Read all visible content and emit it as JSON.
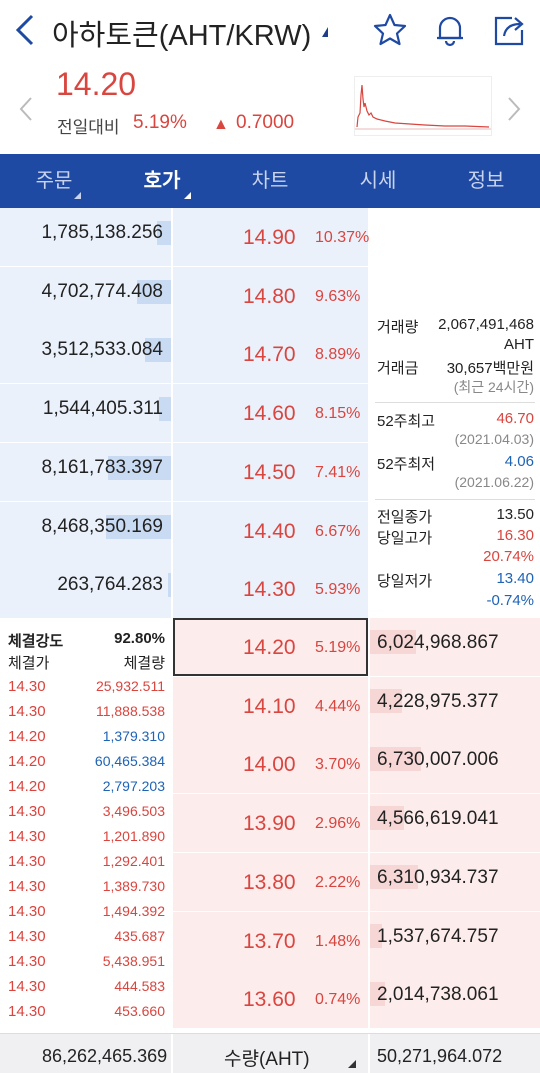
{
  "header": {
    "title": "아하토큰(AHT/KRW)",
    "icons": [
      "back-icon",
      "star-icon",
      "bell-icon",
      "share-icon"
    ]
  },
  "summary": {
    "price": "14.20",
    "prev_label": "전일대비",
    "change_pct": "5.19%",
    "change_arrow": "▲",
    "change_abs": "0.7000"
  },
  "tabs": [
    {
      "label": "주문",
      "active": false,
      "caret": true
    },
    {
      "label": "호가",
      "active": true,
      "caret": true
    },
    {
      "label": "차트",
      "active": false,
      "caret": false
    },
    {
      "label": "시세",
      "active": false,
      "caret": false
    },
    {
      "label": "정보",
      "active": false,
      "caret": false
    }
  ],
  "asks": [
    {
      "volume": "1,785,138.256",
      "price": "14.90",
      "pct": "10.37%",
      "fill": 0.08
    },
    {
      "volume": "4,702,774.408",
      "price": "14.80",
      "pct": "9.63%",
      "fill": 0.2
    },
    {
      "volume": "3,512,533.084",
      "price": "14.70",
      "pct": "8.89%",
      "fill": 0.15
    },
    {
      "volume": "1,544,405.311",
      "price": "14.60",
      "pct": "8.15%",
      "fill": 0.07
    },
    {
      "volume": "8,161,783.397",
      "price": "14.50",
      "pct": "7.41%",
      "fill": 0.37
    },
    {
      "volume": "8,468,350.169",
      "price": "14.40",
      "pct": "6.67%",
      "fill": 0.38
    },
    {
      "volume": "263,764.283",
      "price": "14.30",
      "pct": "5.93%",
      "fill": 0.02
    }
  ],
  "bids": [
    {
      "price": "14.20",
      "pct": "5.19%",
      "volume": "6,024,968.867",
      "fill": 0.27,
      "highlight": true
    },
    {
      "price": "14.10",
      "pct": "4.44%",
      "volume": "4,228,975.377",
      "fill": 0.19,
      "highlight": false
    },
    {
      "price": "14.00",
      "pct": "3.70%",
      "volume": "6,730,007.006",
      "fill": 0.3,
      "highlight": false
    },
    {
      "price": "13.90",
      "pct": "2.96%",
      "volume": "4,566,619.041",
      "fill": 0.2,
      "highlight": false
    },
    {
      "price": "13.80",
      "pct": "2.22%",
      "volume": "6,310,934.737",
      "fill": 0.28,
      "highlight": false
    },
    {
      "price": "13.70",
      "pct": "1.48%",
      "volume": "1,537,674.757",
      "fill": 0.07,
      "highlight": false
    },
    {
      "price": "13.60",
      "pct": "0.74%",
      "volume": "2,014,738.061",
      "fill": 0.09,
      "highlight": false
    }
  ],
  "stats": {
    "trade_vol_label": "거래량",
    "trade_vol": "2,067,491,468",
    "trade_vol_unit": "AHT",
    "trade_amt_label": "거래금",
    "trade_amt": "30,657백만원",
    "period_note": "(최근 24시간)",
    "high52_label": "52주최고",
    "high52": "46.70",
    "high52_date": "(2021.04.03)",
    "low52_label": "52주최저",
    "low52": "4.06",
    "low52_date": "(2021.06.22)",
    "prev_close_label": "전일종가",
    "prev_close": "13.50",
    "day_high_label": "당일고가",
    "day_high": "16.30",
    "day_high_pct": "20.74%",
    "day_low_label": "당일저가",
    "day_low": "13.40",
    "day_low_pct": "-0.74%"
  },
  "trades": {
    "strength_label": "체결강도",
    "strength": "92.80%",
    "price_label": "체결가",
    "qty_label": "체결량",
    "rows": [
      {
        "price": "14.30",
        "qty": "25,932.511",
        "side": "red"
      },
      {
        "price": "14.30",
        "qty": "11,888.538",
        "side": "red"
      },
      {
        "price": "14.20",
        "qty": "1,379.310",
        "side": "blue"
      },
      {
        "price": "14.20",
        "qty": "60,465.384",
        "side": "blue"
      },
      {
        "price": "14.20",
        "qty": "2,797.203",
        "side": "blue"
      },
      {
        "price": "14.30",
        "qty": "3,496.503",
        "side": "red"
      },
      {
        "price": "14.30",
        "qty": "1,201.890",
        "side": "red"
      },
      {
        "price": "14.30",
        "qty": "1,292.401",
        "side": "red"
      },
      {
        "price": "14.30",
        "qty": "1,389.730",
        "side": "red"
      },
      {
        "price": "14.30",
        "qty": "1,494.392",
        "side": "red"
      },
      {
        "price": "14.30",
        "qty": "435.687",
        "side": "red"
      },
      {
        "price": "14.30",
        "qty": "5,438.951",
        "side": "red"
      },
      {
        "price": "14.30",
        "qty": "444.583",
        "side": "red"
      },
      {
        "price": "14.30",
        "qty": "453.660",
        "side": "red"
      }
    ]
  },
  "footer": {
    "ask_total": "86,262,465.369",
    "unit_label": "수량(AHT)",
    "bid_total": "50,271,964.072"
  },
  "colors": {
    "brand": "#1f4aa3",
    "up": "#d9453f",
    "down": "#1e63b4",
    "ask_bg": "#eaf1fb",
    "bid_bg": "#fcecec"
  }
}
